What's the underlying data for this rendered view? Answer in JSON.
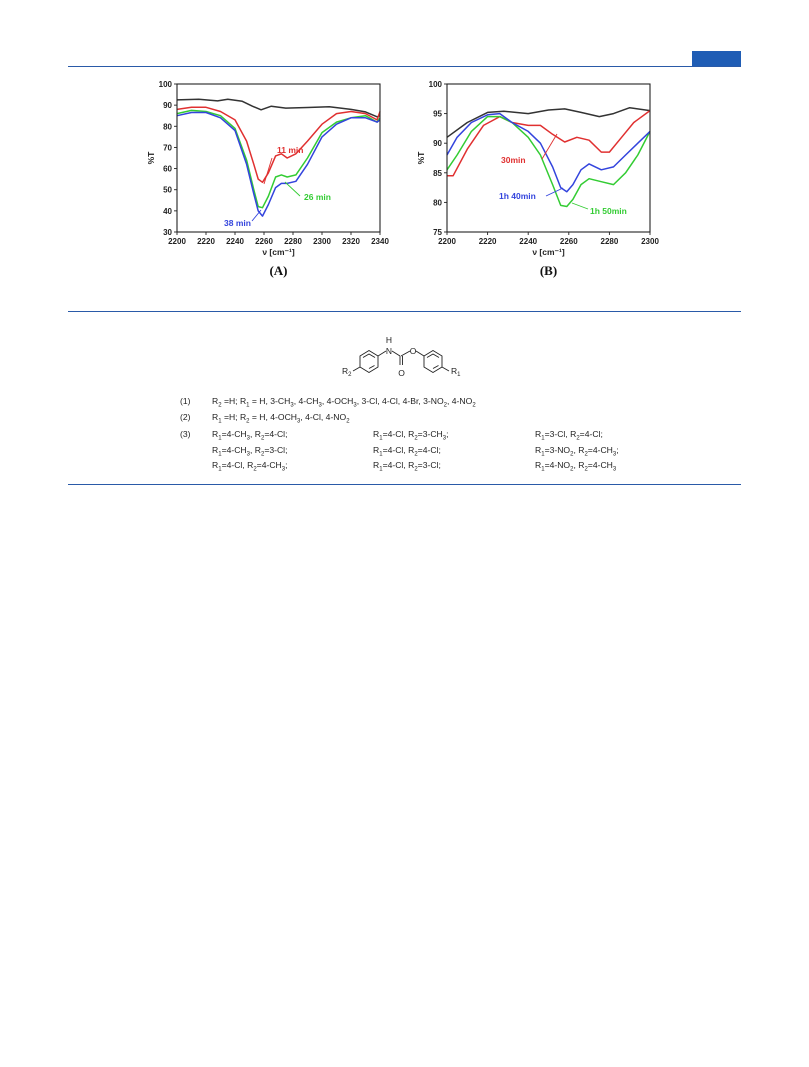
{
  "header": {
    "accent_color": "#1f5db5"
  },
  "chart_data": [
    {
      "type": "line",
      "panel_label": "(A)",
      "xlabel": "ν [cm⁻¹]",
      "ylabel": "%T",
      "xlim": [
        2200,
        2340
      ],
      "ylim": [
        30,
        100
      ],
      "xticks": [
        2200,
        2220,
        2240,
        2260,
        2280,
        2300,
        2320,
        2340
      ],
      "yticks": [
        30,
        40,
        50,
        60,
        70,
        80,
        90,
        100
      ],
      "grid": false,
      "series": [
        {
          "color": "#333333",
          "x": [
            2200,
            2215,
            2228,
            2235,
            2245,
            2252,
            2258,
            2265,
            2275,
            2290,
            2305,
            2320,
            2330,
            2338,
            2340
          ],
          "y": [
            92.5,
            92.8,
            92.0,
            92.8,
            91.8,
            89.5,
            87.8,
            89.5,
            88.6,
            88.9,
            89.2,
            88.0,
            86.8,
            84.5,
            85.0
          ]
        },
        {
          "color": "#e03030",
          "x": [
            2200,
            2210,
            2220,
            2230,
            2240,
            2248,
            2253,
            2256,
            2259,
            2263,
            2268,
            2272,
            2276,
            2282,
            2290,
            2300,
            2310,
            2320,
            2330,
            2338,
            2340
          ],
          "y": [
            88,
            89,
            89,
            87,
            83,
            73,
            62,
            55,
            53.5,
            58,
            66,
            67,
            65,
            67,
            73,
            81,
            86,
            87,
            86,
            83,
            87
          ]
        },
        {
          "color": "#33cc33",
          "x": [
            2200,
            2210,
            2220,
            2230,
            2240,
            2248,
            2253,
            2256,
            2259,
            2263,
            2268,
            2272,
            2276,
            2282,
            2290,
            2300,
            2310,
            2320,
            2330,
            2338,
            2340
          ],
          "y": [
            86,
            87.5,
            87,
            85,
            79,
            64,
            50,
            42,
            41.5,
            47,
            56,
            57,
            56,
            57,
            65,
            77,
            82,
            84,
            85,
            82,
            84
          ]
        },
        {
          "color": "#3344dd",
          "x": [
            2200,
            2210,
            2220,
            2230,
            2240,
            2248,
            2253,
            2256,
            2259,
            2263,
            2268,
            2272,
            2276,
            2282,
            2290,
            2300,
            2310,
            2320,
            2330,
            2338,
            2340
          ],
          "y": [
            85,
            86.5,
            86.5,
            84,
            78,
            62,
            48,
            40,
            37.5,
            43,
            51,
            53,
            53,
            54,
            62,
            75,
            81,
            84,
            84,
            82,
            83
          ]
        }
      ],
      "annotations": [
        {
          "text": "11 min",
          "color": "#e03030"
        },
        {
          "text": "26 min",
          "color": "#33cc33"
        },
        {
          "text": "38 min",
          "color": "#3344dd"
        }
      ]
    },
    {
      "type": "line",
      "panel_label": "(B)",
      "xlabel": "ν [cm⁻¹]",
      "ylabel": "%T",
      "xlim": [
        2200,
        2300
      ],
      "ylim": [
        75,
        100
      ],
      "xticks": [
        2200,
        2220,
        2240,
        2260,
        2280,
        2300
      ],
      "yticks": [
        75,
        80,
        85,
        90,
        95,
        100
      ],
      "grid": false,
      "series": [
        {
          "color": "#333333",
          "x": [
            2200,
            2210,
            2220,
            2228,
            2240,
            2250,
            2258,
            2266,
            2275,
            2282,
            2290,
            2300
          ],
          "y": [
            91,
            93.5,
            95.2,
            95.4,
            95.0,
            95.6,
            95.8,
            95.2,
            94.5,
            95.0,
            96,
            95.5
          ]
        },
        {
          "color": "#e03030",
          "x": [
            2200,
            2203,
            2210,
            2218,
            2226,
            2232,
            2240,
            2246,
            2252,
            2258,
            2264,
            2270,
            2276,
            2280,
            2286,
            2292,
            2300
          ],
          "y": [
            84.5,
            84.5,
            89,
            93,
            94.5,
            93.5,
            93,
            93,
            91.5,
            90.2,
            91,
            90.5,
            88.5,
            88.5,
            91,
            93.5,
            95.5
          ]
        },
        {
          "color": "#33cc33",
          "x": [
            2200,
            2205,
            2212,
            2220,
            2226,
            2232,
            2240,
            2246,
            2252,
            2256,
            2259,
            2262,
            2266,
            2270,
            2276,
            2282,
            2288,
            2294,
            2300
          ],
          "y": [
            85.5,
            88,
            92,
            94.5,
            94.5,
            93.5,
            91,
            88,
            83,
            79.5,
            79.3,
            80.5,
            83,
            84,
            83.5,
            83,
            85,
            88,
            92
          ]
        },
        {
          "color": "#3344dd",
          "x": [
            2200,
            2205,
            2212,
            2220,
            2226,
            2232,
            2240,
            2246,
            2252,
            2256,
            2259,
            2262,
            2266,
            2270,
            2276,
            2282,
            2288,
            2294,
            2300
          ],
          "y": [
            88,
            91,
            93.5,
            94.8,
            95,
            93.5,
            92,
            90,
            86,
            82.5,
            81.8,
            83,
            85.5,
            86.5,
            85.5,
            86,
            88,
            90,
            92
          ]
        }
      ],
      "annotations": [
        {
          "text": "30min",
          "color": "#e03030"
        },
        {
          "text": "1h 40min",
          "color": "#3344dd"
        },
        {
          "text": "1h 50min",
          "color": "#33cc33"
        }
      ]
    }
  ],
  "scheme": {
    "label_r2": "R",
    "label_r2_sub": "2",
    "label_r1": "R",
    "label_r1_sub": "1",
    "label_nh": "H",
    "label_n": "N",
    "label_o_ether": "O",
    "label_o_carbonyl": "O",
    "rows": [
      {
        "num": "(1)",
        "html": "R<sub>2</sub> =H; R<sub>1</sub> = H, 3-CH<sub>3</sub>, 4-CH<sub>3</sub>, 4-OCH<sub>3</sub>, 3-Cl, 4-Cl, 4-Br, 3-NO<sub>2</sub>, 4-NO<sub>2</sub>"
      },
      {
        "num": "(2)",
        "html": "R<sub>1</sub> =H; R<sub>2</sub> = H, 4-OCH<sub>3</sub>, 4-Cl, 4-NO<sub>2</sub>"
      }
    ],
    "row3_num": "(3)",
    "row3_cols": [
      [
        "R<sub>1</sub>=4-CH<sub>3</sub>, R<sub>2</sub>=4-Cl;",
        "R<sub>1</sub>=4-CH<sub>3</sub>, R<sub>2</sub>=3-Cl;",
        "R<sub>1</sub>=4-Cl, R<sub>2</sub>=4-CH<sub>3</sub>;"
      ],
      [
        "R<sub>1</sub>=4-Cl, R<sub>2</sub>=3-CH<sub>3</sub>;",
        "R<sub>1</sub>=4-Cl, R<sub>2</sub>=4-Cl;",
        "R<sub>1</sub>=4-Cl, R<sub>2</sub>=3-Cl;"
      ],
      [
        "R<sub>1</sub>=3-Cl, R<sub>2</sub>=4-Cl;",
        "R<sub>1</sub>=3-NO<sub>2</sub>, R<sub>2</sub>=4-CH<sub>3</sub>;",
        "R<sub>1</sub>=4-NO<sub>2</sub>, R<sub>2</sub>=4-CH<sub>3</sub>"
      ]
    ]
  }
}
